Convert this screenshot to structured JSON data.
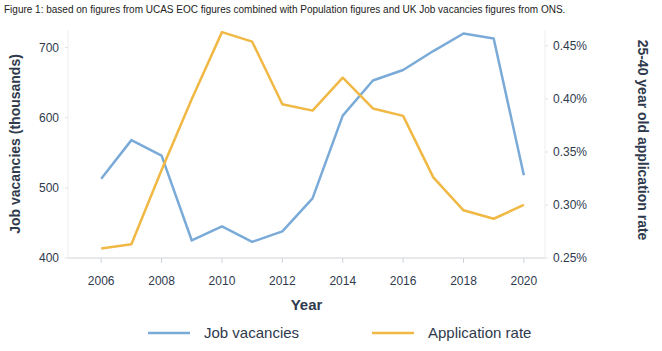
{
  "chart_data": {
    "type": "line",
    "title": "Figure 1: based on figures from UCAS EOC figures combined with  Population figures and UK Job vacancies figures from ONS.",
    "x_label": "Year",
    "y_label": "Job vacancies (thousands)",
    "y2_label": "25-40 year old application rate",
    "x": [
      2006,
      2007,
      2008,
      2009,
      2010,
      2011,
      2012,
      2013,
      2014,
      2015,
      2016,
      2017,
      2018,
      2019,
      2020
    ],
    "xlim": [
      2004.9,
      2020.7
    ],
    "xticks": [
      2006,
      2008,
      2010,
      2012,
      2014,
      2016,
      2018,
      2020
    ],
    "ylim": [
      400,
      725
    ],
    "yticks": [
      400,
      500,
      600,
      700
    ],
    "y2lim": [
      0.25,
      0.465
    ],
    "y2ticks": [
      {
        "value": 0.25,
        "label": "0.25%"
      },
      {
        "value": 0.3,
        "label": "0.30%"
      },
      {
        "value": 0.35,
        "label": "0.35%"
      },
      {
        "value": 0.4,
        "label": "0.40%"
      },
      {
        "value": 0.45,
        "label": "0.45%"
      }
    ],
    "grid": false,
    "legend": "bottom",
    "series": [
      {
        "name": "Job vacancies",
        "color": "#7aabd8",
        "values": [
          513,
          568,
          546,
          425,
          445,
          423,
          438,
          485,
          603,
          653,
          668,
          695,
          720,
          713,
          518
        ]
      },
      {
        "name": "Application rate",
        "color": "#f0b844",
        "axis": "y2",
        "values": [
          0.259,
          0.263,
          0.333,
          0.4,
          0.463,
          0.454,
          0.395,
          0.389,
          0.42,
          0.391,
          0.384,
          0.326,
          0.295,
          0.287,
          0.3
        ]
      }
    ]
  }
}
